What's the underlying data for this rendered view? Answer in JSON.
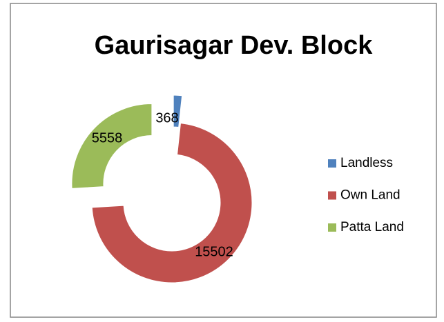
{
  "chart_data": {
    "type": "doughnut",
    "title": "Gaurisagar Dev. Block",
    "categories": [
      "Landless",
      "Own Land",
      "Patta Land"
    ],
    "values": [
      368,
      15502,
      5558
    ],
    "colors": [
      "#4f81bd",
      "#c0504d",
      "#9bbb59"
    ],
    "exploded": [
      true,
      false,
      true
    ],
    "legend": "right"
  }
}
